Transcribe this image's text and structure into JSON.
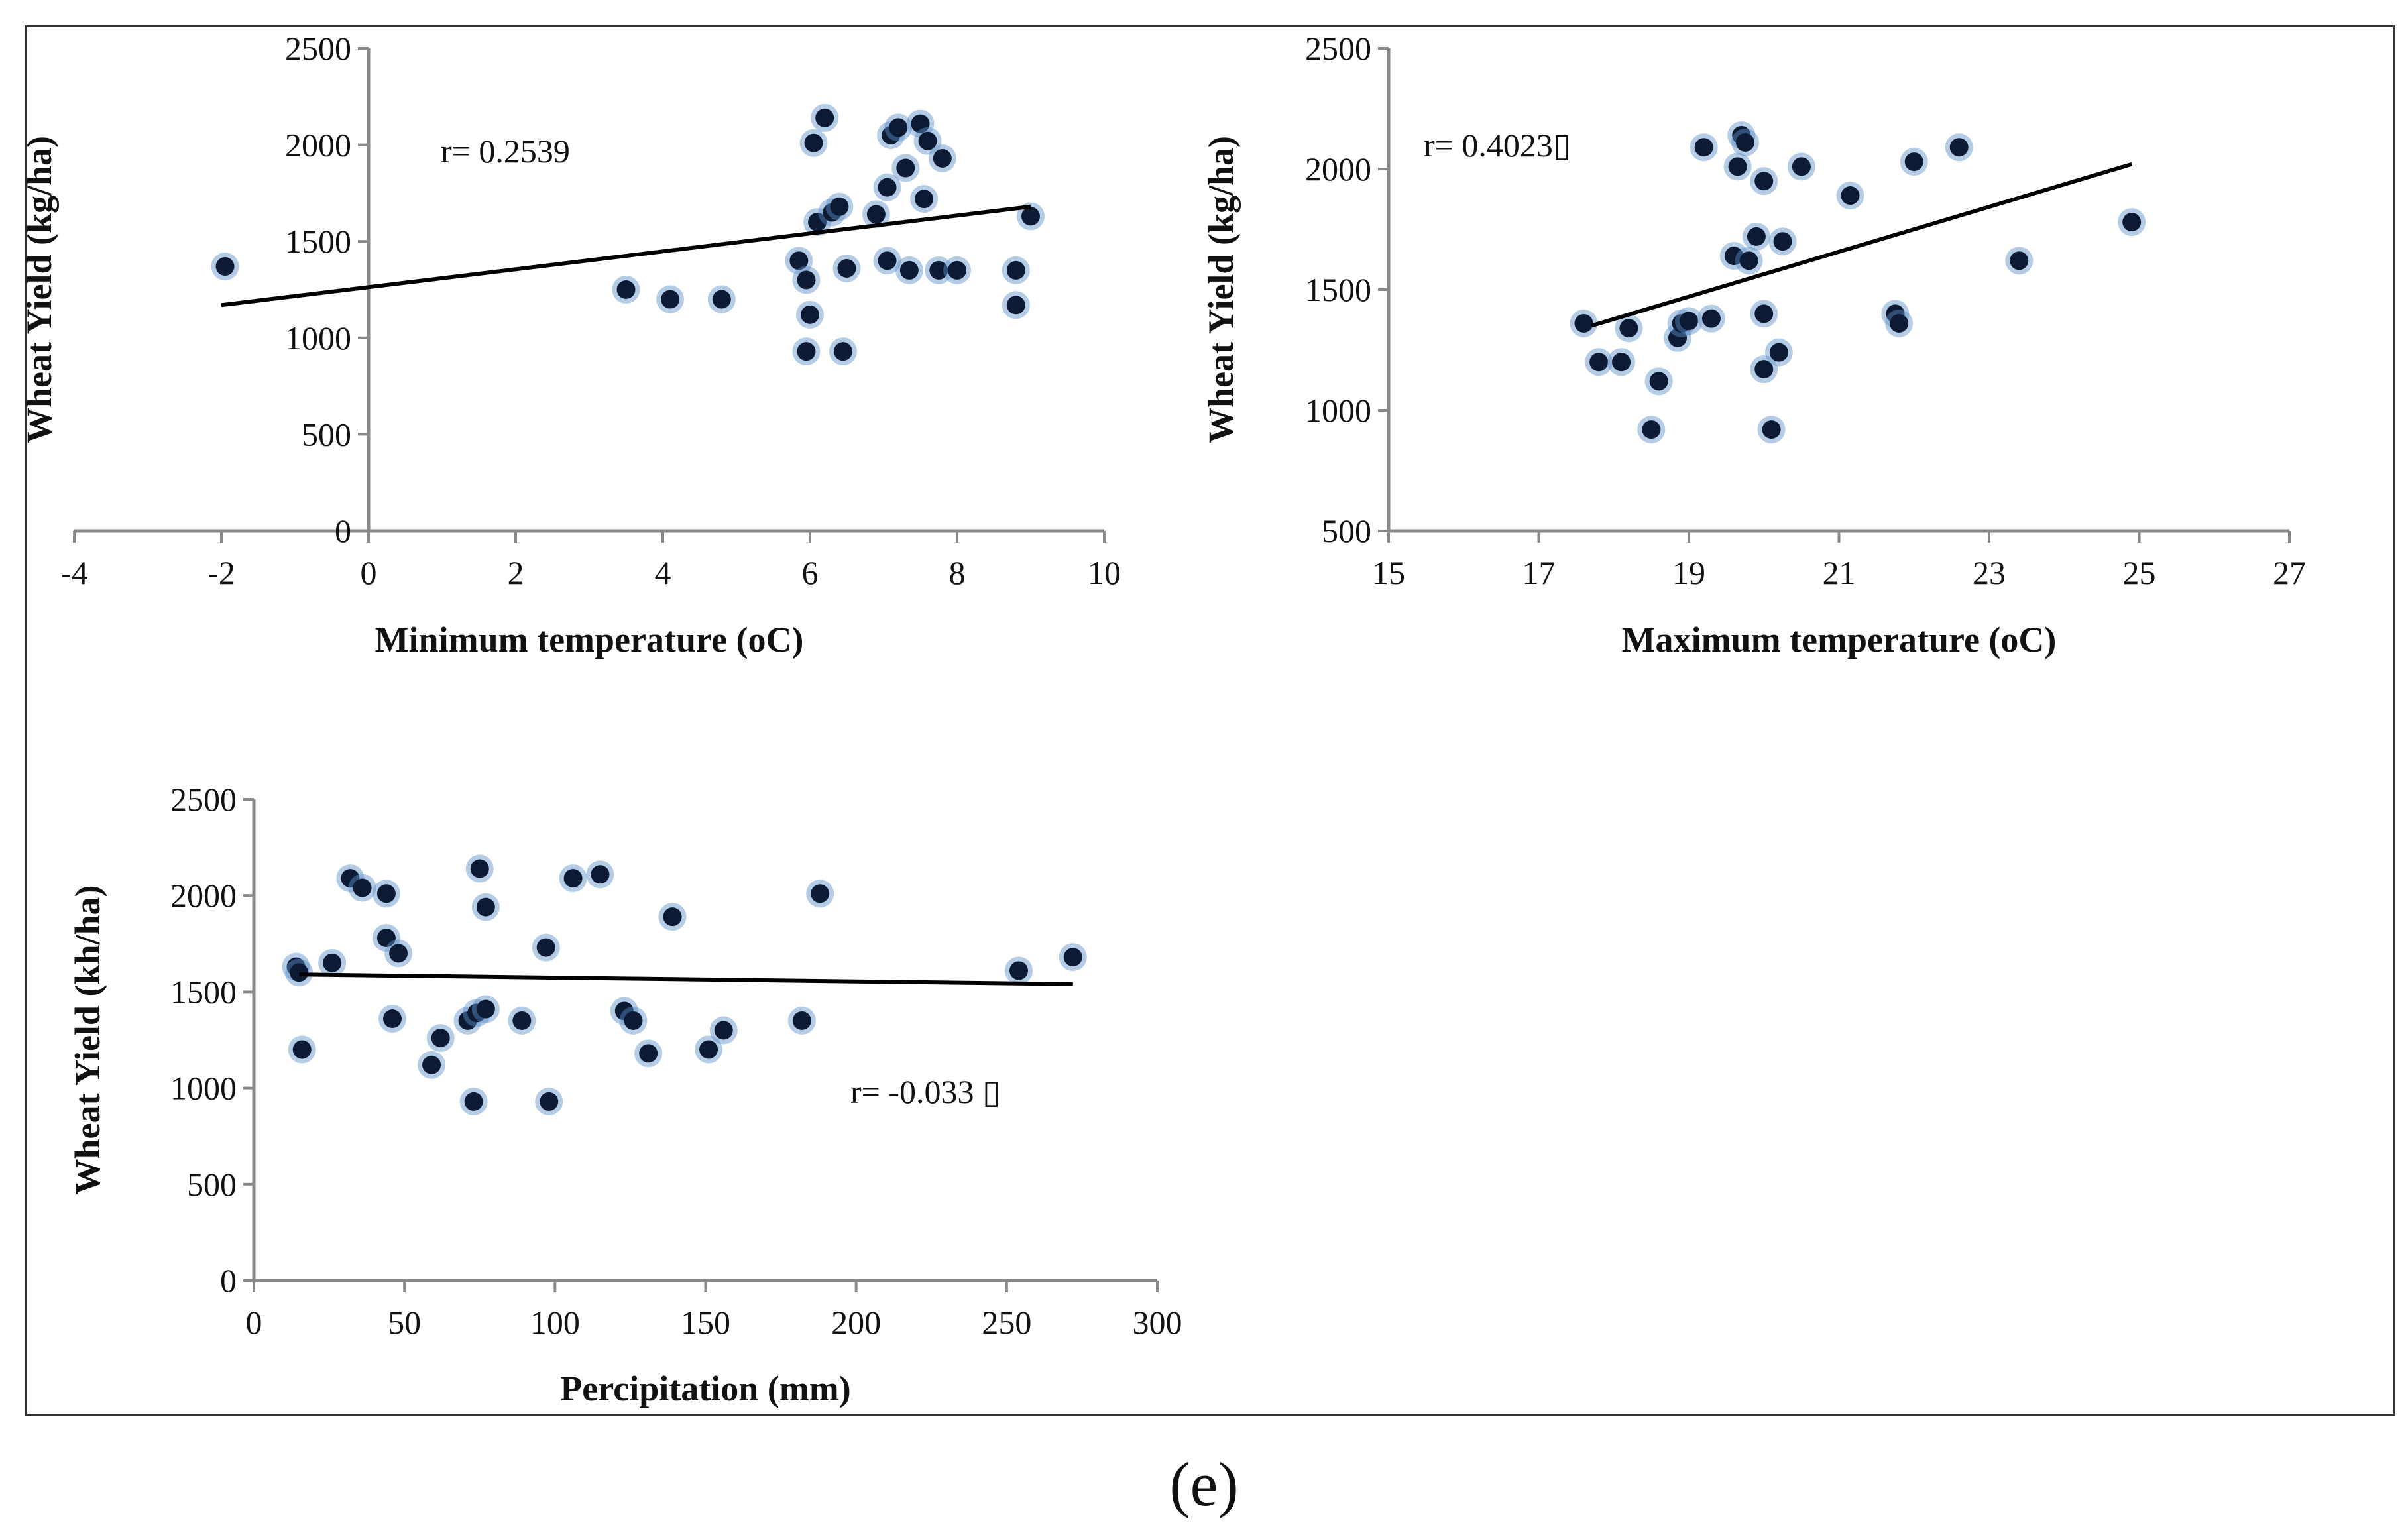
{
  "caption": "(e)",
  "colors": {
    "axis": "#888888",
    "trend": "#000000",
    "point_fill": "#0d1a33",
    "point_halo": "#5b8fc7"
  },
  "chart_data": [
    {
      "type": "scatter",
      "id": "tmin",
      "title": "",
      "xlabel": "Minimum temperature (oC)",
      "ylabel": "Wheat Yield (kg/ha)",
      "xlim": [
        -4,
        10
      ],
      "ylim": [
        0,
        2500
      ],
      "xticks": [
        -4,
        -2,
        0,
        2,
        4,
        6,
        8,
        10
      ],
      "yticks": [
        0,
        500,
        1000,
        1500,
        2000,
        2500
      ],
      "annotation": "r= 0.2539",
      "trendline": [
        [
          -2,
          1170
        ],
        [
          9,
          1680
        ]
      ],
      "points": [
        [
          -1.95,
          1370
        ],
        [
          3.5,
          1250
        ],
        [
          4.1,
          1200
        ],
        [
          4.8,
          1200
        ],
        [
          5.85,
          1400
        ],
        [
          5.95,
          1300
        ],
        [
          6.0,
          1120
        ],
        [
          5.95,
          930
        ],
        [
          6.05,
          2010
        ],
        [
          6.1,
          1600
        ],
        [
          6.2,
          2140
        ],
        [
          6.3,
          1650
        ],
        [
          6.4,
          1680
        ],
        [
          6.45,
          930
        ],
        [
          6.5,
          1360
        ],
        [
          6.9,
          1640
        ],
        [
          7.05,
          1400
        ],
        [
          7.05,
          1780
        ],
        [
          7.1,
          2050
        ],
        [
          7.2,
          2090
        ],
        [
          7.3,
          1880
        ],
        [
          7.35,
          1350
        ],
        [
          7.5,
          2110
        ],
        [
          7.55,
          1720
        ],
        [
          7.6,
          2020
        ],
        [
          7.8,
          1930
        ],
        [
          7.75,
          1350
        ],
        [
          8.0,
          1350
        ],
        [
          8.8,
          1350
        ],
        [
          8.8,
          1170
        ],
        [
          9.0,
          1630
        ]
      ]
    },
    {
      "type": "scatter",
      "id": "tmax",
      "title": "",
      "xlabel": "Maximum temperature (oC)",
      "ylabel": "Wheat Yield (kg/ha)",
      "xlim": [
        15,
        27
      ],
      "ylim": [
        500,
        2500
      ],
      "xticks": [
        15,
        17,
        19,
        21,
        23,
        25,
        27
      ],
      "yticks": [
        500,
        1000,
        1500,
        2000,
        2500
      ],
      "annotation": "r= 0.4023▯",
      "trendline": [
        [
          17.7,
          1350
        ],
        [
          24.9,
          2020
        ]
      ],
      "points": [
        [
          17.6,
          1360
        ],
        [
          17.8,
          1200
        ],
        [
          18.1,
          1200
        ],
        [
          18.2,
          1340
        ],
        [
          18.5,
          920
        ],
        [
          18.6,
          1120
        ],
        [
          18.85,
          1300
        ],
        [
          18.9,
          1360
        ],
        [
          19.0,
          1370
        ],
        [
          19.2,
          2090
        ],
        [
          19.3,
          1380
        ],
        [
          19.6,
          1640
        ],
        [
          19.65,
          2010
        ],
        [
          19.7,
          2140
        ],
        [
          19.75,
          2110
        ],
        [
          19.8,
          1620
        ],
        [
          19.9,
          1720
        ],
        [
          20.0,
          1950
        ],
        [
          20.0,
          1400
        ],
        [
          20.0,
          1170
        ],
        [
          20.1,
          920
        ],
        [
          20.2,
          1240
        ],
        [
          20.25,
          1700
        ],
        [
          20.5,
          2010
        ],
        [
          21.15,
          1890
        ],
        [
          21.75,
          1400
        ],
        [
          21.8,
          1360
        ],
        [
          22.0,
          2030
        ],
        [
          22.6,
          2090
        ],
        [
          23.4,
          1620
        ],
        [
          24.9,
          1780
        ]
      ]
    },
    {
      "type": "scatter",
      "id": "precip",
      "title": "",
      "xlabel": "Percipitation (mm)",
      "ylabel": "Wheat Yield (kh/ha)",
      "xlim": [
        0,
        300
      ],
      "ylim": [
        0,
        2500
      ],
      "xticks": [
        0,
        50,
        100,
        150,
        200,
        250,
        300
      ],
      "yticks": [
        0,
        500,
        1000,
        1500,
        2000,
        2500
      ],
      "annotation": "r= -0.033 ▯",
      "trendline": [
        [
          15,
          1590
        ],
        [
          272,
          1540
        ]
      ],
      "points": [
        [
          14,
          1630
        ],
        [
          15,
          1600
        ],
        [
          16,
          1200
        ],
        [
          26,
          1650
        ],
        [
          32,
          2090
        ],
        [
          36,
          2040
        ],
        [
          44,
          2010
        ],
        [
          44,
          1780
        ],
        [
          46,
          1360
        ],
        [
          48,
          1700
        ],
        [
          59,
          1120
        ],
        [
          62,
          1260
        ],
        [
          71,
          1350
        ],
        [
          73,
          930
        ],
        [
          74,
          1390
        ],
        [
          75,
          2140
        ],
        [
          77,
          1940
        ],
        [
          77,
          1410
        ],
        [
          89,
          1350
        ],
        [
          97,
          1730
        ],
        [
          98,
          930
        ],
        [
          106,
          2090
        ],
        [
          115,
          2110
        ],
        [
          123,
          1400
        ],
        [
          126,
          1350
        ],
        [
          131,
          1180
        ],
        [
          139,
          1890
        ],
        [
          151,
          1200
        ],
        [
          156,
          1300
        ],
        [
          182,
          1350
        ],
        [
          188,
          2010
        ],
        [
          254,
          1610
        ],
        [
          272,
          1680
        ]
      ]
    }
  ]
}
